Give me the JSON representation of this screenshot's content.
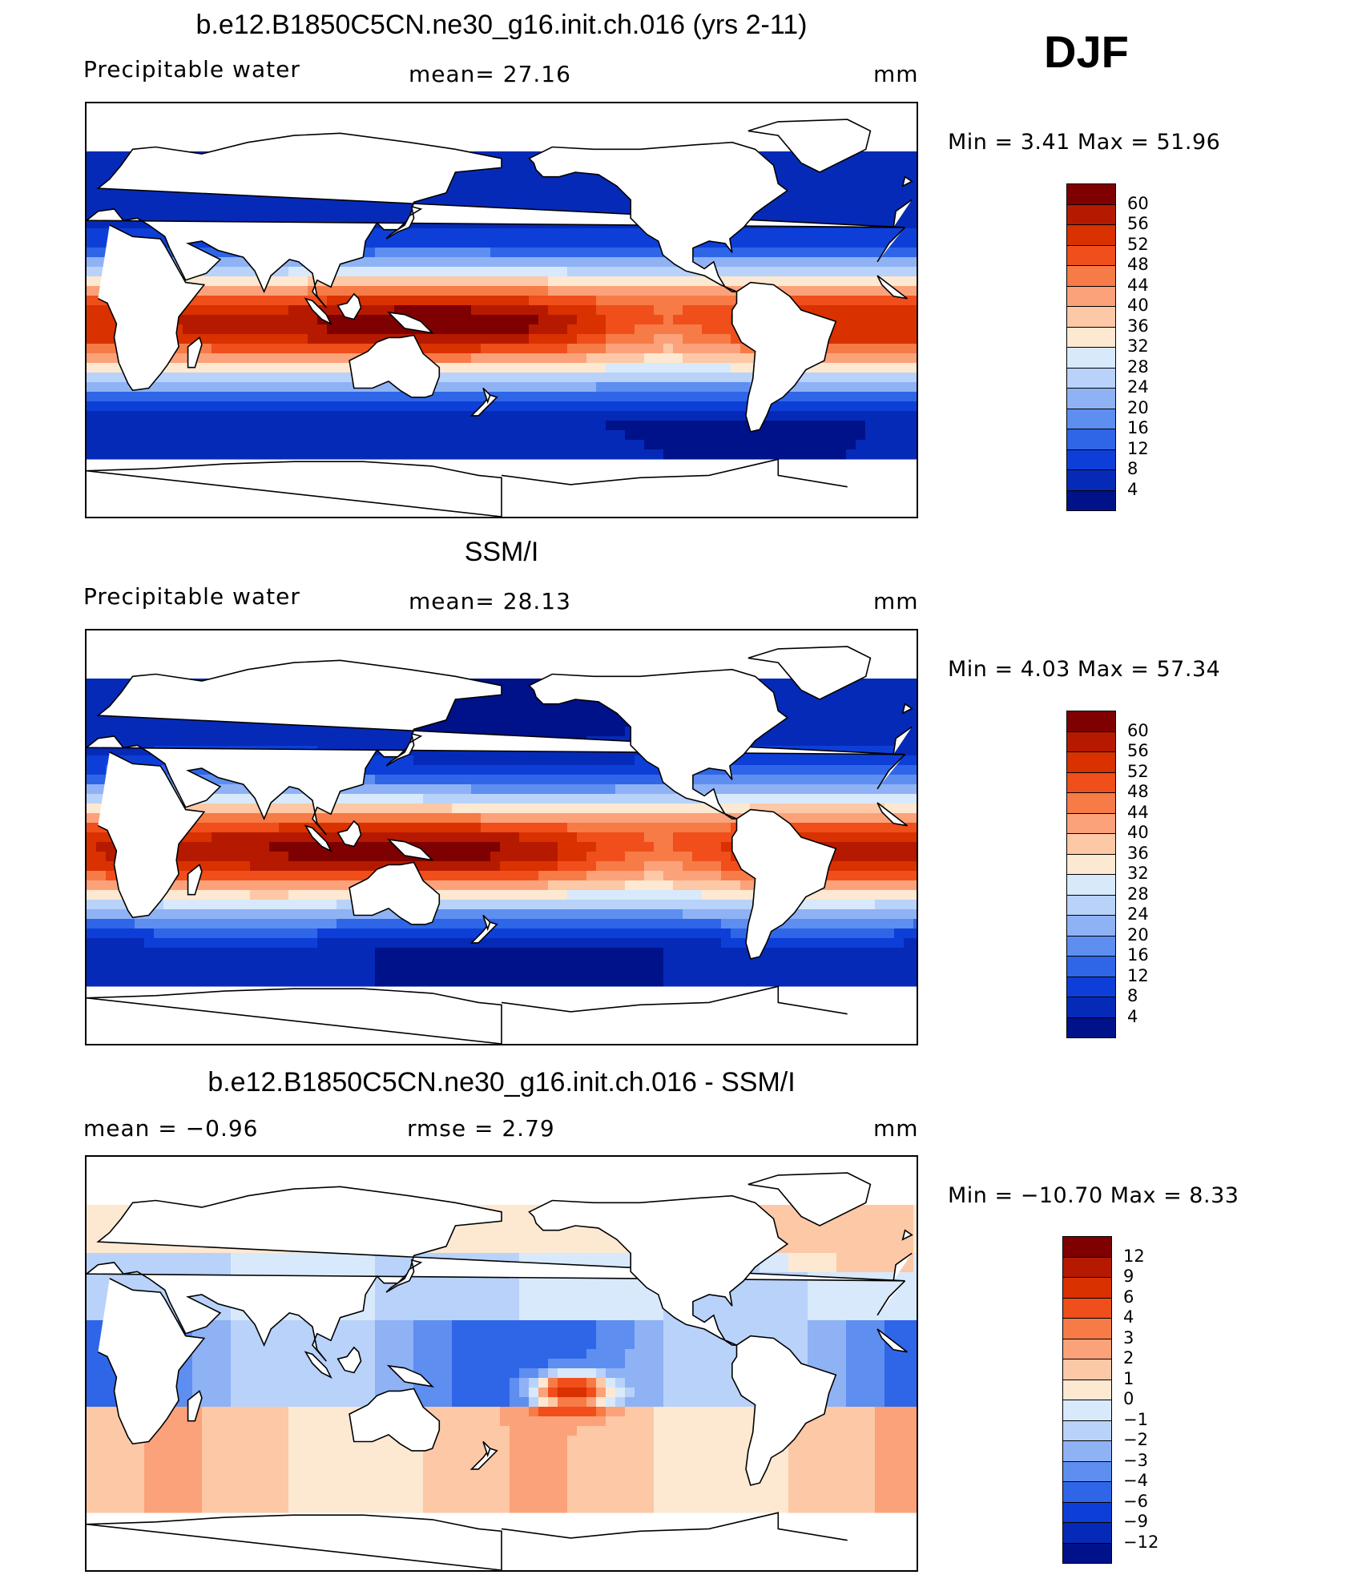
{
  "season": "DJF",
  "panels": [
    {
      "title": "b.e12.B1850C5CN.ne30_g16.init.ch.016 (yrs 2-11)",
      "variable": "Precipitable  water",
      "stat1": "mean=   27.16",
      "stat2": "",
      "units": "mm",
      "minmax": "Min  =     3.41  Max  =    51.96",
      "colorbar": {
        "labels": [
          "60",
          "56",
          "52",
          "48",
          "44",
          "40",
          "36",
          "32",
          "28",
          "24",
          "20",
          "16",
          "12",
          "8",
          "4"
        ],
        "colors": [
          "#7f0000",
          "#b51a00",
          "#d93100",
          "#f04e1a",
          "#f77b46",
          "#fba27a",
          "#fdc8a6",
          "#fde8d2",
          "#d8e9fb",
          "#b8d2fa",
          "#8fb2f5",
          "#5e8ef0",
          "#2f66e8",
          "#0d3fd8",
          "#062ab8",
          "#00128a"
        ]
      },
      "map": {
        "type": "full_mean",
        "min": 3.41,
        "max": 51.96
      }
    },
    {
      "title": "SSM/I",
      "variable": "Precipitable  water",
      "stat1": "mean=   28.13",
      "stat2": "",
      "units": "mm",
      "minmax": "Min  =     4.03  Max  =    57.34",
      "colorbar": {
        "labels": [
          "60",
          "56",
          "52",
          "48",
          "44",
          "40",
          "36",
          "32",
          "28",
          "24",
          "20",
          "16",
          "12",
          "8",
          "4"
        ],
        "colors": [
          "#7f0000",
          "#b51a00",
          "#d93100",
          "#f04e1a",
          "#f77b46",
          "#fba27a",
          "#fdc8a6",
          "#fde8d2",
          "#d8e9fb",
          "#b8d2fa",
          "#8fb2f5",
          "#5e8ef0",
          "#2f66e8",
          "#0d3fd8",
          "#062ab8",
          "#00128a"
        ]
      },
      "map": {
        "type": "obs_mean",
        "min": 4.03,
        "max": 57.34
      }
    },
    {
      "title": "b.e12.B1850C5CN.ne30_g16.init.ch.016 - SSM/I",
      "variable": "mean  =     −0.96",
      "stat1": "rmse  =     2.79",
      "stat2": "",
      "units": "mm",
      "minmax": "Min  = −10.70  Max  =     8.33",
      "colorbar": {
        "labels": [
          "12",
          "9",
          "6",
          "4",
          "3",
          "2",
          "1",
          "0",
          "−1",
          "−2",
          "−3",
          "−4",
          "−6",
          "−9",
          "−12"
        ],
        "colors": [
          "#7f0000",
          "#b51a00",
          "#d93100",
          "#f04e1a",
          "#f77b46",
          "#fba27a",
          "#fdc8a6",
          "#fde8d2",
          "#d8e9fb",
          "#b8d2fa",
          "#8fb2f5",
          "#5e8ef0",
          "#2f66e8",
          "#0d3fd8",
          "#062ab8",
          "#00128a"
        ]
      },
      "map": {
        "type": "difference",
        "min": -10.7,
        "max": 8.33,
        "mean": -0.96,
        "rmse": 2.79
      }
    }
  ]
}
